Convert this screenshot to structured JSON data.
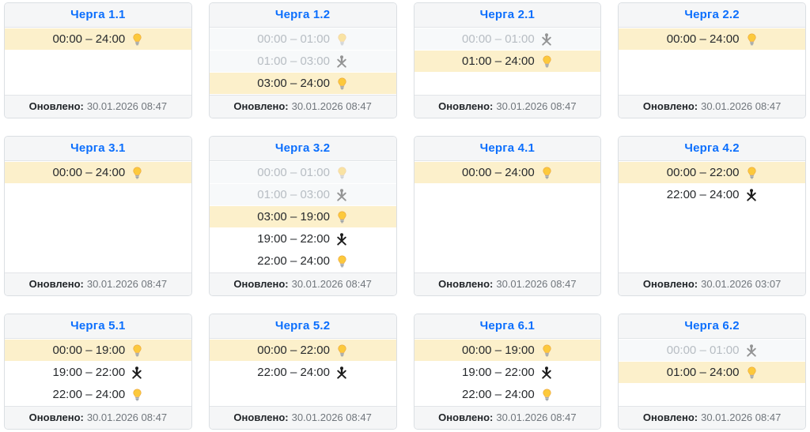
{
  "updated_label": "Оновлено:",
  "colors": {
    "title_blue": "#0c6ffd",
    "active_row_bg": "#fcf0cb",
    "past_row_bg": "#f7f9fa",
    "past_text": "#b7bdc3",
    "header_footer_bg": "#f5f6f7",
    "card_border": "#dbdfe3"
  },
  "icons": {
    "power-on": "lightbulb-icon (світло є)",
    "power-off": "no-power-icon (відключення)"
  },
  "cards": [
    {
      "title": "Черга 1.1",
      "updated": "30.01.2026 08:47",
      "rows": [
        {
          "time": "00:00 – 24:00",
          "icon": "power-on",
          "state": "active"
        }
      ]
    },
    {
      "title": "Черга 1.2",
      "updated": "30.01.2026 08:47",
      "rows": [
        {
          "time": "00:00 – 01:00",
          "icon": "power-on",
          "state": "past"
        },
        {
          "time": "01:00 – 03:00",
          "icon": "power-off",
          "state": "past"
        },
        {
          "time": "03:00 – 24:00",
          "icon": "power-on",
          "state": "active"
        }
      ]
    },
    {
      "title": "Черга 2.1",
      "updated": "30.01.2026 08:47",
      "rows": [
        {
          "time": "00:00 – 01:00",
          "icon": "power-off",
          "state": "past"
        },
        {
          "time": "01:00 – 24:00",
          "icon": "power-on",
          "state": "active"
        }
      ]
    },
    {
      "title": "Черга 2.2",
      "updated": "30.01.2026 08:47",
      "rows": [
        {
          "time": "00:00 – 24:00",
          "icon": "power-on",
          "state": "active"
        }
      ]
    },
    {
      "title": "Черга 3.1",
      "updated": "30.01.2026 08:47",
      "rows": [
        {
          "time": "00:00 – 24:00",
          "icon": "power-on",
          "state": "active"
        }
      ]
    },
    {
      "title": "Черга 3.2",
      "updated": "30.01.2026 08:47",
      "rows": [
        {
          "time": "00:00 – 01:00",
          "icon": "power-on",
          "state": "past"
        },
        {
          "time": "01:00 – 03:00",
          "icon": "power-off",
          "state": "past"
        },
        {
          "time": "03:00 – 19:00",
          "icon": "power-on",
          "state": "active"
        },
        {
          "time": "19:00 – 22:00",
          "icon": "power-off",
          "state": "future"
        },
        {
          "time": "22:00 – 24:00",
          "icon": "power-on",
          "state": "future"
        }
      ]
    },
    {
      "title": "Черга 4.1",
      "updated": "30.01.2026 08:47",
      "rows": [
        {
          "time": "00:00 – 24:00",
          "icon": "power-on",
          "state": "active"
        }
      ]
    },
    {
      "title": "Черга 4.2",
      "updated": "30.01.2026 03:07",
      "rows": [
        {
          "time": "00:00 – 22:00",
          "icon": "power-on",
          "state": "active"
        },
        {
          "time": "22:00 – 24:00",
          "icon": "power-off",
          "state": "future"
        }
      ]
    },
    {
      "title": "Черга 5.1",
      "updated": "30.01.2026 08:47",
      "rows": [
        {
          "time": "00:00 – 19:00",
          "icon": "power-on",
          "state": "active"
        },
        {
          "time": "19:00 – 22:00",
          "icon": "power-off",
          "state": "future"
        },
        {
          "time": "22:00 – 24:00",
          "icon": "power-on",
          "state": "future"
        }
      ]
    },
    {
      "title": "Черга 5.2",
      "updated": "30.01.2026 08:47",
      "rows": [
        {
          "time": "00:00 – 22:00",
          "icon": "power-on",
          "state": "active"
        },
        {
          "time": "22:00 – 24:00",
          "icon": "power-off",
          "state": "future"
        }
      ]
    },
    {
      "title": "Черга 6.1",
      "updated": "30.01.2026 08:47",
      "rows": [
        {
          "time": "00:00 – 19:00",
          "icon": "power-on",
          "state": "active"
        },
        {
          "time": "19:00 – 22:00",
          "icon": "power-off",
          "state": "future"
        },
        {
          "time": "22:00 – 24:00",
          "icon": "power-on",
          "state": "future"
        }
      ]
    },
    {
      "title": "Черга 6.2",
      "updated": "30.01.2026 08:47",
      "rows": [
        {
          "time": "00:00 – 01:00",
          "icon": "power-off",
          "state": "past"
        },
        {
          "time": "01:00 – 24:00",
          "icon": "power-on",
          "state": "active"
        }
      ]
    }
  ]
}
